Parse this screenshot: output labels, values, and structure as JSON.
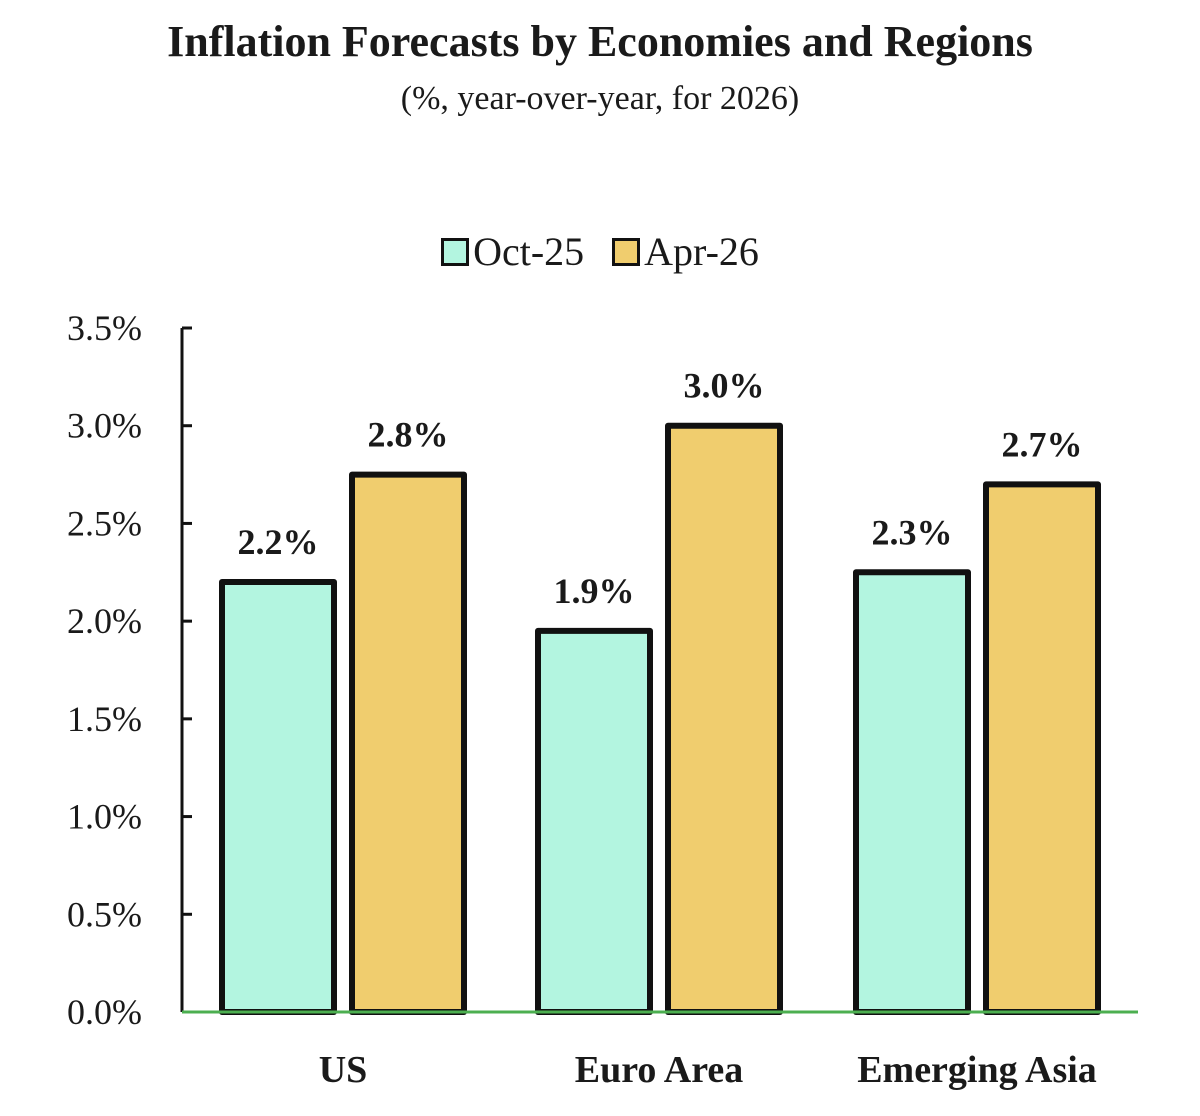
{
  "chart_data": {
    "type": "bar",
    "title": "Inflation Forecasts by Economies and Regions",
    "subtitle": "(%, year-over-year, for 2026)",
    "categories": [
      "US",
      "Euro Area",
      "Emerging Asia"
    ],
    "series": [
      {
        "name": "Oct-25",
        "values": [
          2.2,
          1.95,
          2.25
        ],
        "labels": [
          "2.2%",
          "1.9%",
          "2.3%"
        ],
        "color": "#b3f5e0"
      },
      {
        "name": "Apr-26",
        "values": [
          2.75,
          3.0,
          2.7
        ],
        "labels": [
          "2.8%",
          "3.0%",
          "2.7%"
        ],
        "color": "#f0cd6e"
      }
    ],
    "ylim": [
      0,
      3.5
    ],
    "yticks": [
      0,
      0.5,
      1.0,
      1.5,
      2.0,
      2.5,
      3.0,
      3.5
    ],
    "ytick_labels": [
      "0.0%",
      "0.5%",
      "1.0%",
      "1.5%",
      "2.0%",
      "2.5%",
      "3.0%",
      "3.5%"
    ],
    "grid": false,
    "legend_position": "top-center",
    "baseline_color": "#4caf50"
  }
}
